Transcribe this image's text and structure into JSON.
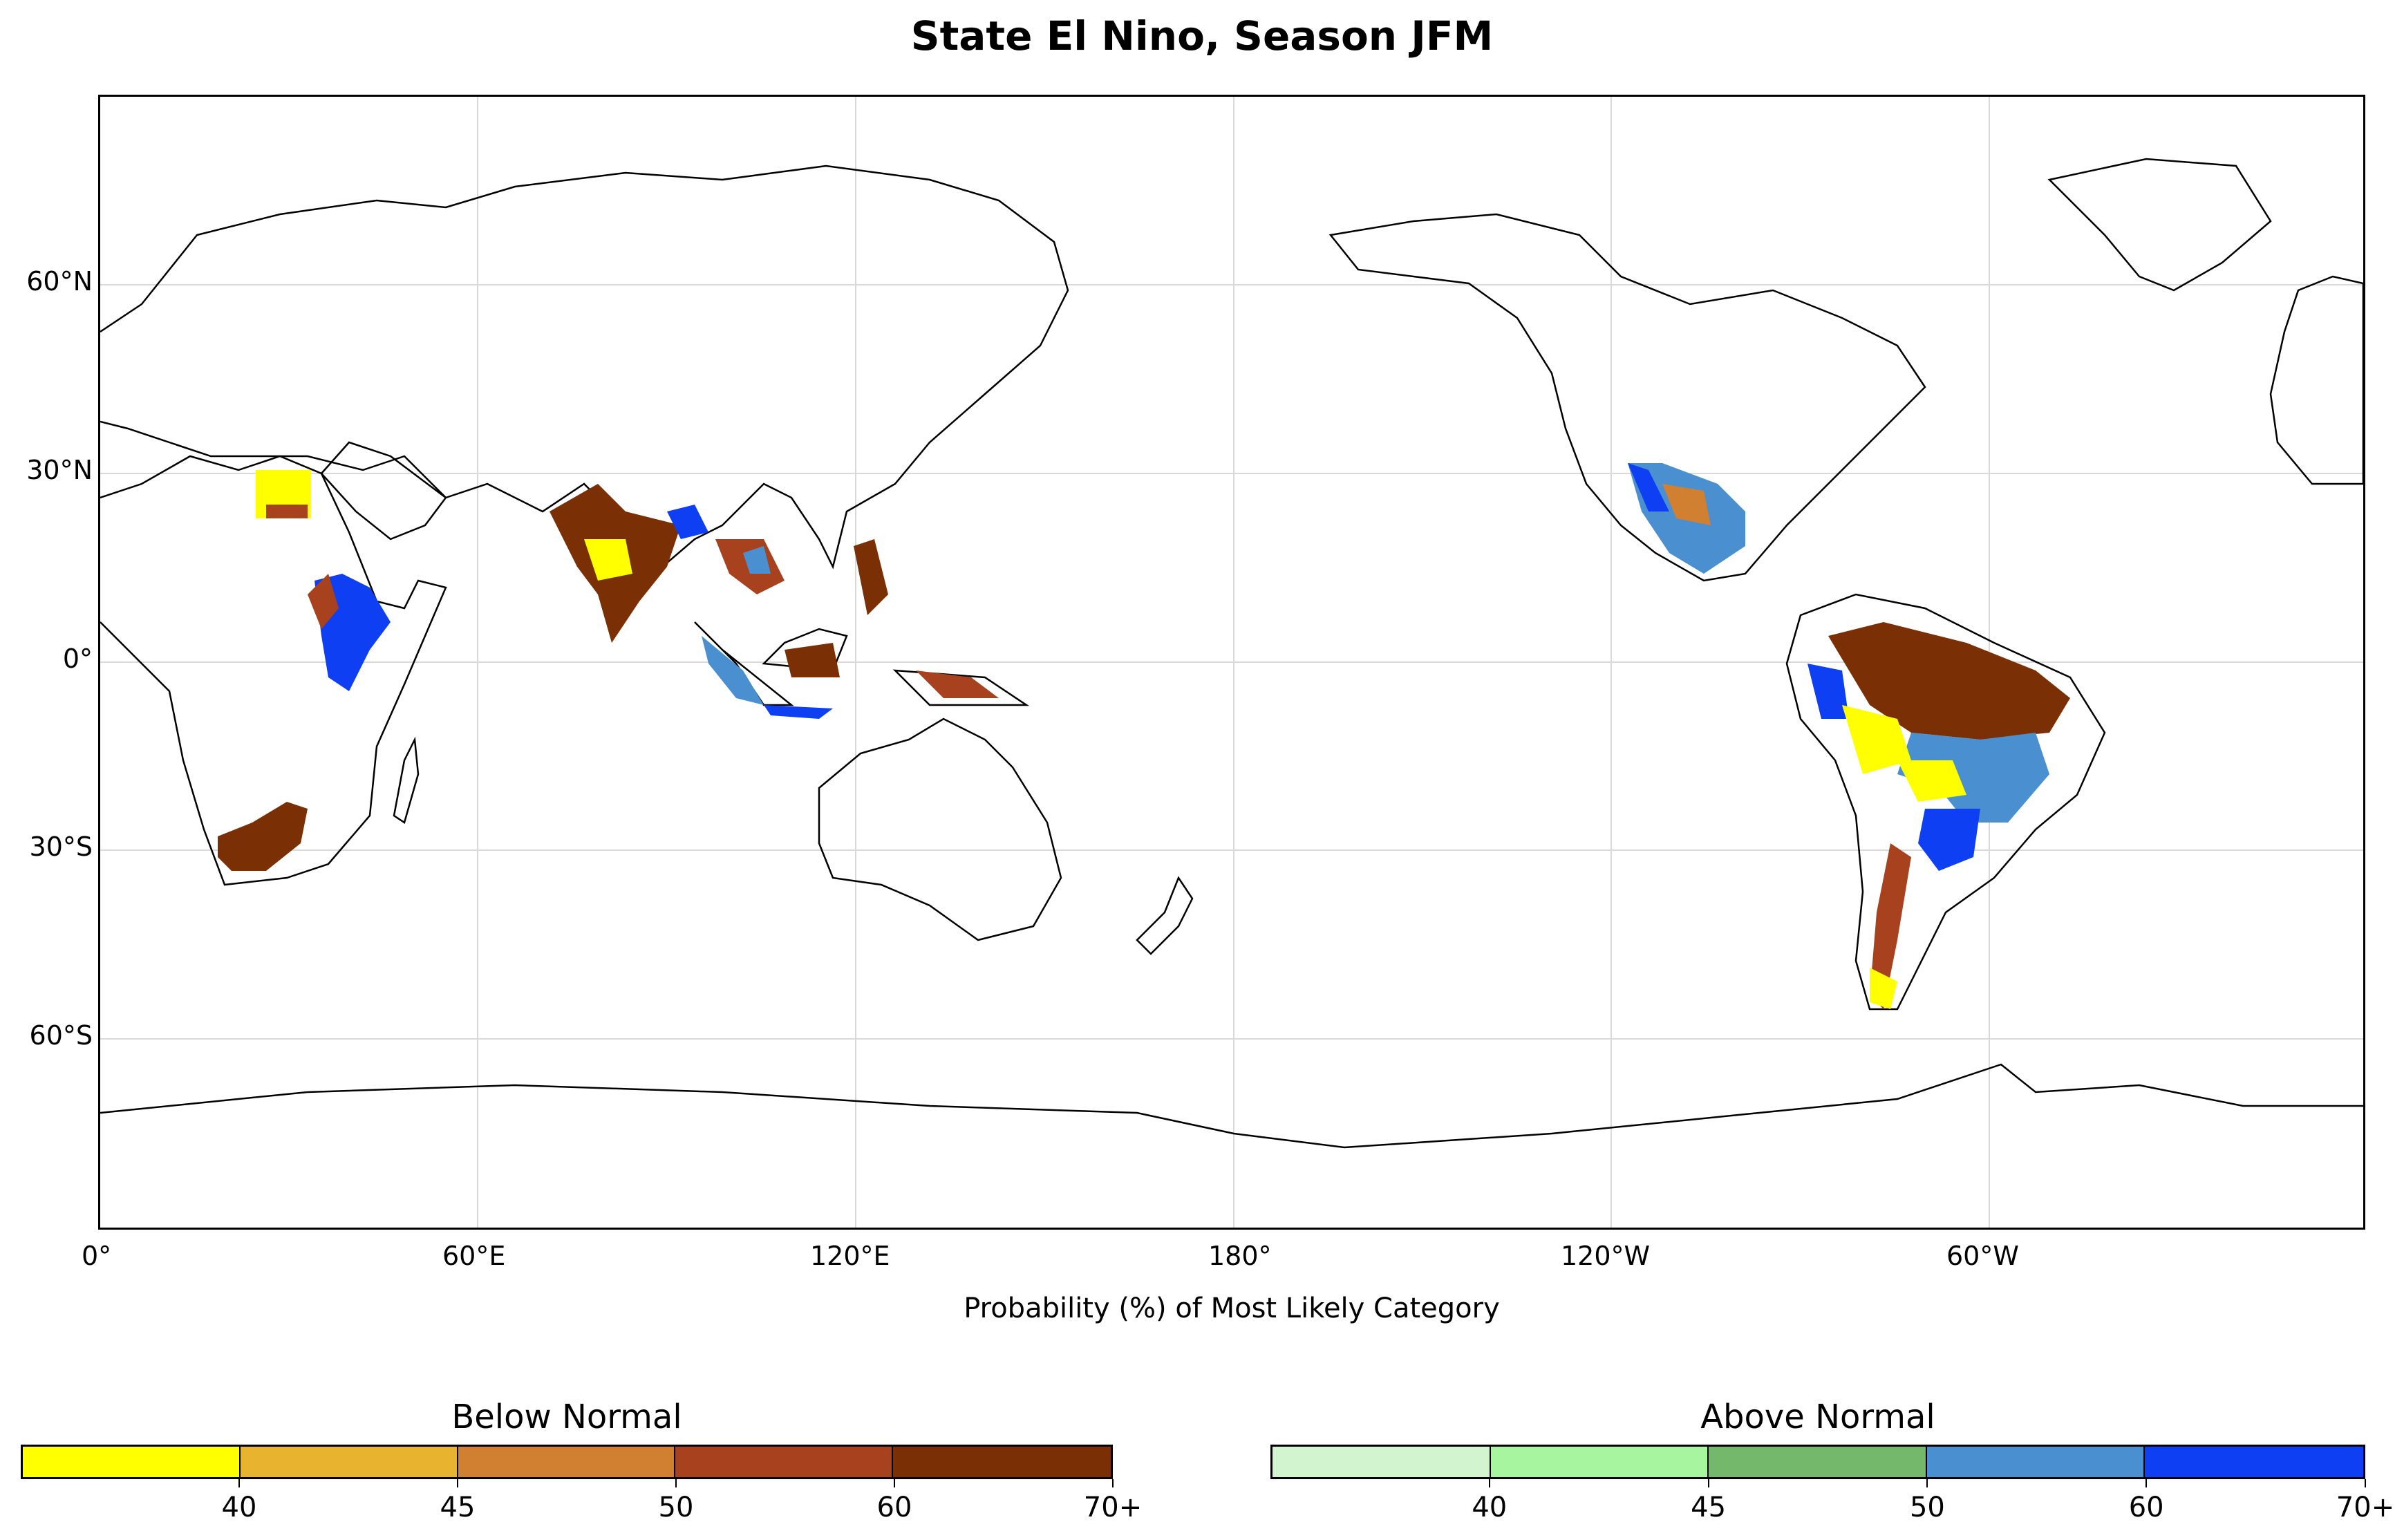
{
  "title": "State El Nino, Season JFM",
  "map": {
    "lat_ticks": [
      "60°N",
      "30°N",
      "0°",
      "30°S",
      "60°S"
    ],
    "lon_ticks": [
      "0°",
      "60°E",
      "120°E",
      "180°",
      "120°W",
      "60°W"
    ],
    "xlabel": "Probability (%) of Most Likely Category",
    "land_color": "#ffffff",
    "coast_color": "#000000",
    "grid": true
  },
  "colorbars": {
    "below": {
      "title": "Below Normal",
      "colors": [
        "#ffff00",
        "#e8b430",
        "#d17f30",
        "#a8421e",
        "#7a3004"
      ],
      "ticks": [
        "40",
        "45",
        "50",
        "60",
        "70+"
      ]
    },
    "above": {
      "title": "Above Normal",
      "colors": [
        "#d2f5cf",
        "#a8f5a0",
        "#74b86c",
        "#4a90d0",
        "#0f3ff2"
      ],
      "ticks": [
        "40",
        "45",
        "50",
        "60",
        "70+"
      ]
    }
  }
}
